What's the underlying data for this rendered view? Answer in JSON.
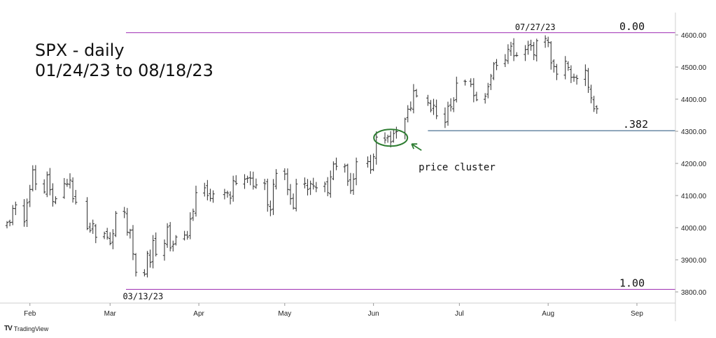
{
  "title": {
    "line1": "SPX - daily",
    "line2": "01/24/23 to 08/18/23"
  },
  "footer": {
    "brand": "TradingView",
    "logo_icon": "tradingview-logo-icon"
  },
  "colors": {
    "bar": "#2b2b2b",
    "fib_line": "#9c27b0",
    "retrace_line": "#1f4e79",
    "annotation": "#2e7d32",
    "grid": "#e6e6e6"
  },
  "chart_data": {
    "type": "ohlc",
    "y_axis": {
      "ticks": [
        3800,
        3900,
        4000,
        4100,
        4200,
        4300,
        4400,
        4500,
        4600
      ],
      "tick_labels": [
        "3800.00",
        "3900.00",
        "4000.00",
        "4100.00",
        "4200.00",
        "4300.00",
        "4400.00",
        "4500.00",
        "4600.00"
      ],
      "range": [
        3775,
        4660
      ]
    },
    "x_axis": {
      "labels": [
        "Feb",
        "Mar",
        "Apr",
        "May",
        "Jun",
        "Jul",
        "Aug",
        "Sep"
      ],
      "label_dates": [
        "2023-02-01",
        "2023-03-01",
        "2023-04-01",
        "2023-05-01",
        "2023-06-01",
        "2023-07-01",
        "2023-08-01",
        "2023-09-01"
      ]
    },
    "levels": [
      {
        "label": "0.00",
        "value": 4607,
        "from_date": "2023-03-13"
      },
      {
        "label": ".382",
        "value": 4302,
        "from_date": "2023-06-13"
      },
      {
        "label": "1.00",
        "value": 3808,
        "from_date": "2023-03-13"
      }
    ],
    "annotations": [
      {
        "text": "07/27/23",
        "date": "2023-07-27",
        "value": 4607
      },
      {
        "text": "03/13/23",
        "date": "2023-03-13",
        "value": 3808
      },
      {
        "text": "price cluster",
        "date": "2023-06-07",
        "value": 4280
      }
    ],
    "closes": [
      [
        "2023-01-24",
        4016
      ],
      [
        "2023-01-25",
        4016
      ],
      [
        "2023-01-26",
        4060
      ],
      [
        "2023-01-27",
        4071
      ],
      [
        "2023-01-30",
        4018
      ],
      [
        "2023-01-31",
        4077
      ],
      [
        "2023-02-01",
        4119
      ],
      [
        "2023-02-02",
        4180
      ],
      [
        "2023-02-03",
        4136
      ],
      [
        "2023-02-06",
        4111
      ],
      [
        "2023-02-07",
        4164
      ],
      [
        "2023-02-08",
        4118
      ],
      [
        "2023-02-09",
        4081
      ],
      [
        "2023-02-10",
        4090
      ],
      [
        "2023-02-13",
        4137
      ],
      [
        "2023-02-14",
        4136
      ],
      [
        "2023-02-15",
        4148
      ],
      [
        "2023-02-16",
        4090
      ],
      [
        "2023-02-17",
        4079
      ],
      [
        "2023-02-21",
        3997
      ],
      [
        "2023-02-22",
        3991
      ],
      [
        "2023-02-23",
        4012
      ],
      [
        "2023-02-24",
        3970
      ],
      [
        "2023-02-27",
        3982
      ],
      [
        "2023-02-28",
        3970
      ],
      [
        "2023-03-01",
        3951
      ],
      [
        "2023-03-02",
        3981
      ],
      [
        "2023-03-03",
        4045
      ],
      [
        "2023-03-06",
        4048
      ],
      [
        "2023-03-07",
        3986
      ],
      [
        "2023-03-08",
        3992
      ],
      [
        "2023-03-09",
        3918
      ],
      [
        "2023-03-10",
        3861
      ],
      [
        "2023-03-13",
        3855
      ],
      [
        "2023-03-14",
        3920
      ],
      [
        "2023-03-15",
        3892
      ],
      [
        "2023-03-16",
        3960
      ],
      [
        "2023-03-17",
        3917
      ],
      [
        "2023-03-20",
        3951
      ],
      [
        "2023-03-21",
        4002
      ],
      [
        "2023-03-22",
        3937
      ],
      [
        "2023-03-23",
        3948
      ],
      [
        "2023-03-24",
        3971
      ],
      [
        "2023-03-27",
        3977
      ],
      [
        "2023-03-28",
        3971
      ],
      [
        "2023-03-29",
        4027
      ],
      [
        "2023-03-30",
        4051
      ],
      [
        "2023-03-31",
        4109
      ],
      [
        "2023-04-03",
        4124
      ],
      [
        "2023-04-04",
        4100
      ],
      [
        "2023-04-05",
        4091
      ],
      [
        "2023-04-06",
        4105
      ],
      [
        "2023-04-10",
        4109
      ],
      [
        "2023-04-11",
        4108
      ],
      [
        "2023-04-12",
        4092
      ],
      [
        "2023-04-13",
        4146
      ],
      [
        "2023-04-14",
        4138
      ],
      [
        "2023-04-17",
        4151
      ],
      [
        "2023-04-18",
        4154
      ],
      [
        "2023-04-19",
        4154
      ],
      [
        "2023-04-20",
        4129
      ],
      [
        "2023-04-21",
        4133
      ],
      [
        "2023-04-24",
        4137
      ],
      [
        "2023-04-25",
        4071
      ],
      [
        "2023-04-26",
        4055
      ],
      [
        "2023-04-27",
        4135
      ],
      [
        "2023-04-28",
        4169
      ],
      [
        "2023-05-01",
        4167
      ],
      [
        "2023-05-02",
        4119
      ],
      [
        "2023-05-03",
        4090
      ],
      [
        "2023-05-04",
        4061
      ],
      [
        "2023-05-05",
        4136
      ],
      [
        "2023-05-08",
        4138
      ],
      [
        "2023-05-09",
        4119
      ],
      [
        "2023-05-10",
        4137
      ],
      [
        "2023-05-11",
        4130
      ],
      [
        "2023-05-12",
        4124
      ],
      [
        "2023-05-15",
        4136
      ],
      [
        "2023-05-16",
        4109
      ],
      [
        "2023-05-17",
        4158
      ],
      [
        "2023-05-18",
        4198
      ],
      [
        "2023-05-19",
        4191
      ],
      [
        "2023-05-22",
        4192
      ],
      [
        "2023-05-23",
        4145
      ],
      [
        "2023-05-24",
        4115
      ],
      [
        "2023-05-25",
        4151
      ],
      [
        "2023-05-26",
        4205
      ],
      [
        "2023-05-30",
        4206
      ],
      [
        "2023-05-31",
        4180
      ],
      [
        "2023-06-01",
        4221
      ],
      [
        "2023-06-02",
        4282
      ],
      [
        "2023-06-05",
        4273
      ],
      [
        "2023-06-06",
        4283
      ],
      [
        "2023-06-07",
        4267
      ],
      [
        "2023-06-08",
        4293
      ],
      [
        "2023-06-09",
        4299
      ],
      [
        "2023-06-12",
        4338
      ],
      [
        "2023-06-13",
        4369
      ],
      [
        "2023-06-14",
        4372
      ],
      [
        "2023-06-15",
        4426
      ],
      [
        "2023-06-16",
        4410
      ],
      [
        "2023-06-20",
        4389
      ],
      [
        "2023-06-21",
        4366
      ],
      [
        "2023-06-22",
        4381
      ],
      [
        "2023-06-23",
        4348
      ],
      [
        "2023-06-26",
        4328
      ],
      [
        "2023-06-27",
        4378
      ],
      [
        "2023-06-28",
        4376
      ],
      [
        "2023-06-29",
        4396
      ],
      [
        "2023-06-30",
        4450
      ],
      [
        "2023-07-03",
        4455
      ],
      [
        "2023-07-05",
        4446
      ],
      [
        "2023-07-06",
        4411
      ],
      [
        "2023-07-07",
        4398
      ],
      [
        "2023-07-10",
        4409
      ],
      [
        "2023-07-11",
        4439
      ],
      [
        "2023-07-12",
        4472
      ],
      [
        "2023-07-13",
        4510
      ],
      [
        "2023-07-14",
        4505
      ],
      [
        "2023-07-17",
        4522
      ],
      [
        "2023-07-18",
        4555
      ],
      [
        "2023-07-19",
        4565
      ],
      [
        "2023-07-20",
        4535
      ],
      [
        "2023-07-21",
        4536
      ],
      [
        "2023-07-24",
        4554
      ],
      [
        "2023-07-25",
        4567
      ],
      [
        "2023-07-26",
        4566
      ],
      [
        "2023-07-27",
        4538
      ],
      [
        "2023-07-28",
        4582
      ],
      [
        "2023-07-31",
        4589
      ],
      [
        "2023-08-01",
        4577
      ],
      [
        "2023-08-02",
        4513
      ],
      [
        "2023-08-03",
        4502
      ],
      [
        "2023-08-04",
        4478
      ],
      [
        "2023-08-07",
        4518
      ],
      [
        "2023-08-08",
        4499
      ],
      [
        "2023-08-09",
        4468
      ],
      [
        "2023-08-10",
        4468
      ],
      [
        "2023-08-11",
        4464
      ],
      [
        "2023-08-14",
        4490
      ],
      [
        "2023-08-15",
        4437
      ],
      [
        "2023-08-16",
        4404
      ],
      [
        "2023-08-17",
        4370
      ],
      [
        "2023-08-18",
        4370
      ]
    ]
  }
}
